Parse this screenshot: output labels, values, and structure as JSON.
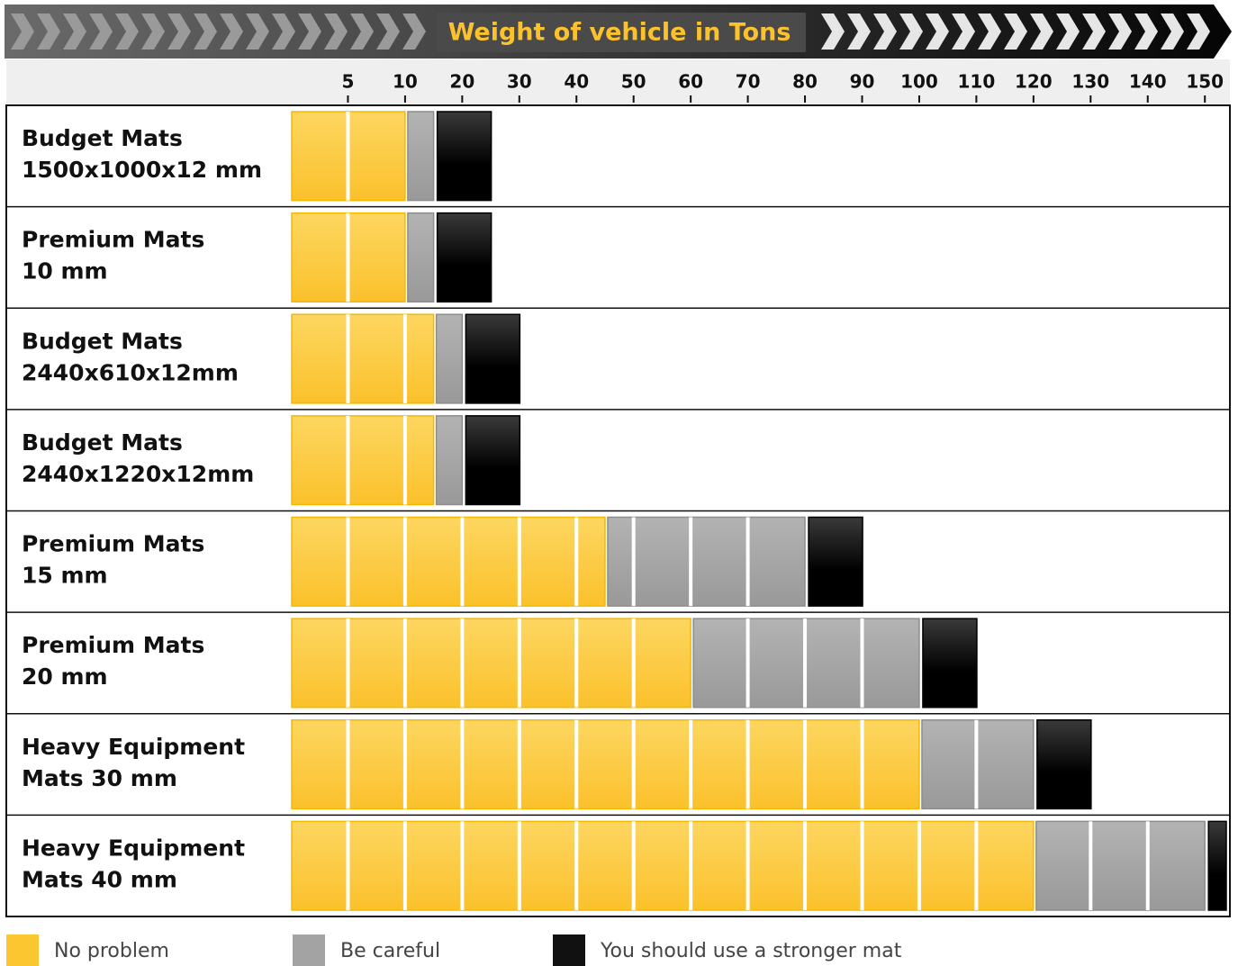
{
  "chart_data": {
    "type": "segmented_bar",
    "title": "Weight of vehicle in Tons",
    "xlim": [
      0,
      150
    ],
    "xticks": [
      5,
      10,
      20,
      30,
      40,
      50,
      60,
      70,
      80,
      90,
      100,
      110,
      120,
      130,
      140,
      150
    ],
    "rows": [
      {
        "label_lines": [
          "Budget Mats",
          "1500x1000x12 mm"
        ],
        "no_problem": 10,
        "careful": 15
      },
      {
        "label_lines": [
          "Premium Mats",
          "10 mm"
        ],
        "no_problem": 10,
        "careful": 15
      },
      {
        "label_lines": [
          "Budget Mats",
          "2440x610x12mm"
        ],
        "no_problem": 15,
        "careful": 20
      },
      {
        "label_lines": [
          "Budget Mats",
          "2440x1220x12mm"
        ],
        "no_problem": 15,
        "careful": 20
      },
      {
        "label_lines": [
          "Premium Mats",
          "15 mm"
        ],
        "no_problem": 45,
        "careful": 80
      },
      {
        "label_lines": [
          "Premium Mats",
          "20 mm"
        ],
        "no_problem": 60,
        "careful": 100
      },
      {
        "label_lines": [
          "Heavy Equipment",
          "Mats 30 mm"
        ],
        "no_problem": 100,
        "careful": 120
      },
      {
        "label_lines": [
          "Heavy Equipment",
          "Mats 40 mm"
        ],
        "no_problem": 120,
        "careful": 150
      }
    ],
    "legend": [
      {
        "name": "No problem",
        "color": "#fcc630"
      },
      {
        "name": "Be careful",
        "color": "#a3a3a3"
      },
      {
        "name": "You should use a stronger mat",
        "color": "#111111"
      }
    ]
  }
}
